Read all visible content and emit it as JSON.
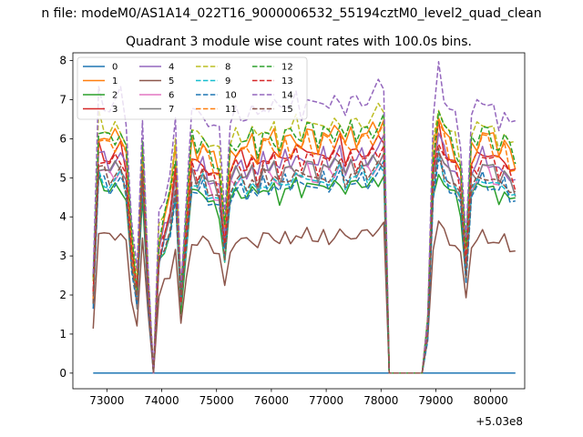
{
  "chart_data": {
    "type": "line",
    "suptitle": "n file: modeM0/AS1A14_022T16_9000006532_55194cztM0_level2_quad_clean",
    "title": "Quadrant 3 module wise count rates with 100.0s bins.",
    "xlabel": "",
    "ylabel": "",
    "x_offset_label": "+5.03e8",
    "x_offset": 503000000,
    "xlim": [
      72380,
      80620
    ],
    "ylim": [
      -0.4,
      8.2
    ],
    "xticks": [
      73000,
      74000,
      75000,
      76000,
      77000,
      78000,
      79000,
      80000
    ],
    "yticks": [
      0,
      1,
      2,
      3,
      4,
      5,
      6,
      7,
      8
    ],
    "legend": {
      "placement": "top-left",
      "columns": 4
    },
    "series": [
      {
        "name": "0",
        "color": "#1f77b4",
        "dash": "solid",
        "level": 0.0
      },
      {
        "name": "1",
        "color": "#ff7f0e",
        "dash": "solid",
        "level": 6.2
      },
      {
        "name": "2",
        "color": "#2ca02c",
        "dash": "solid",
        "level": 4.9
      },
      {
        "name": "3",
        "color": "#d62728",
        "dash": "solid",
        "level": 5.8
      },
      {
        "name": "4",
        "color": "#9467bd",
        "dash": "solid",
        "level": 5.6
      },
      {
        "name": "5",
        "color": "#8c564b",
        "dash": "solid",
        "level": 3.6
      },
      {
        "name": "6",
        "color": "#e377c2",
        "dash": "solid",
        "level": 5.3
      },
      {
        "name": "7",
        "color": "#7f7f7f",
        "dash": "solid",
        "level": 5.4
      },
      {
        "name": "8",
        "color": "#bcbd22",
        "dash": "dashed",
        "level": 6.5
      },
      {
        "name": "9",
        "color": "#17becf",
        "dash": "dashed",
        "level": 5.1
      },
      {
        "name": "10",
        "color": "#1f77b4",
        "dash": "dashed",
        "level": 5.0
      },
      {
        "name": "11",
        "color": "#ff7f0e",
        "dash": "dashed",
        "level": 6.0
      },
      {
        "name": "12",
        "color": "#2ca02c",
        "dash": "dashed",
        "level": 6.3
      },
      {
        "name": "13",
        "color": "#d62728",
        "dash": "dashed",
        "level": 5.6
      },
      {
        "name": "14",
        "color": "#9467bd",
        "dash": "dashed",
        "level": 7.1
      },
      {
        "name": "15",
        "color": "#8c564b",
        "dash": "dashed",
        "level": 5.2
      }
    ],
    "profile": {
      "x": [
        72750,
        72850,
        72950,
        73050,
        73150,
        73250,
        73350,
        73450,
        73550,
        73650,
        73750,
        73850,
        73950,
        74050,
        74150,
        74250,
        74350,
        74450,
        74550,
        74650,
        74750,
        74850,
        74950,
        75050,
        75150,
        75250,
        75350,
        75450,
        75550,
        75650,
        75750,
        75850,
        75950,
        76050,
        76150,
        76250,
        76350,
        76450,
        76550,
        76650,
        76750,
        76850,
        76950,
        77050,
        77150,
        77250,
        77350,
        77450,
        77550,
        77650,
        77750,
        77850,
        77950,
        78050,
        78150,
        78250,
        78350,
        78450,
        78550,
        78650,
        78750,
        78850,
        78950,
        79050,
        79150,
        79250,
        79350,
        79450,
        79550,
        79650,
        79750,
        79850,
        79950,
        80050,
        80150,
        80250,
        80350,
        80450
      ],
      "factor": [
        0.35,
        1.0,
        0.98,
        0.95,
        0.97,
        0.99,
        0.92,
        0.55,
        0.35,
        0.95,
        0.4,
        0.0,
        0.55,
        0.65,
        0.72,
        0.9,
        0.35,
        0.65,
        0.95,
        0.92,
        0.96,
        0.9,
        0.88,
        0.85,
        0.6,
        0.9,
        0.94,
        0.95,
        0.93,
        0.96,
        0.9,
        0.98,
        0.95,
        0.97,
        0.92,
        0.98,
        0.96,
        0.99,
        0.95,
        1.0,
        0.97,
        0.94,
        1.0,
        0.96,
        0.98,
        1.02,
        0.95,
        0.99,
        0.97,
        1.0,
        0.98,
        1.0,
        1.02,
        1.05,
        0.0,
        0.0,
        0.0,
        0.0,
        0.0,
        0.0,
        0.0,
        0.2,
        0.9,
        1.08,
        1.0,
        0.95,
        0.92,
        0.85,
        0.5,
        0.92,
        0.95,
        1.0,
        0.97,
        0.95,
        0.92,
        0.96,
        0.9,
        0.88
      ]
    }
  }
}
